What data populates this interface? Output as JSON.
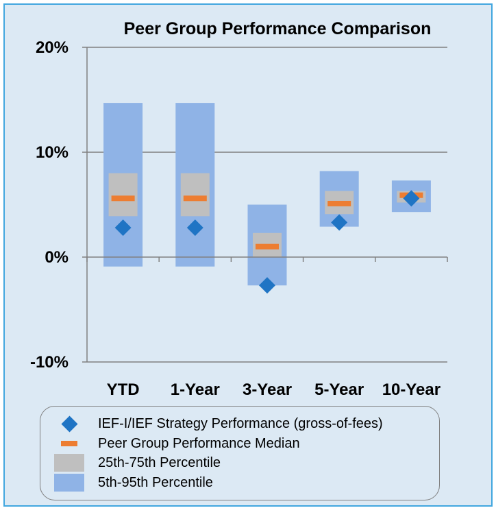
{
  "chart_data": {
    "type": "box",
    "title": "Peer Group Performance Comparison",
    "categories": [
      "YTD",
      "1-Year",
      "3-Year",
      "5-Year",
      "10-Year"
    ],
    "y_ticks": [
      20,
      10,
      0,
      -10
    ],
    "y_tick_labels": [
      "20%",
      "10%",
      "0%",
      "-10%"
    ],
    "ylim": [
      -10,
      20
    ],
    "grid": true,
    "series": [
      {
        "name": "5th-95th Percentile",
        "low": [
          -0.9,
          -0.9,
          -2.7,
          2.9,
          4.3
        ],
        "high": [
          14.7,
          14.7,
          5.0,
          8.2,
          7.3
        ]
      },
      {
        "name": "25th-75th Percentile",
        "low": [
          3.9,
          3.9,
          0.0,
          4.1,
          5.2
        ],
        "high": [
          8.0,
          8.0,
          2.3,
          6.3,
          6.3
        ]
      },
      {
        "name": "Peer Group Performance Median",
        "values": [
          5.6,
          5.6,
          1.0,
          5.1,
          5.9
        ]
      },
      {
        "name": "IEF-I/IEF Strategy Performance (gross-of-fees)",
        "values": [
          2.8,
          2.8,
          -2.7,
          3.3,
          5.6
        ]
      }
    ],
    "colors": {
      "p5_95": "#8fb3e6",
      "p25_75": "#bfbfbf",
      "median": "#ed7d31",
      "strategy": "#1f74c4",
      "axis": "#808080"
    },
    "legend_position": "bottom"
  },
  "legend": [
    {
      "label": "IEF-I/IEF Strategy Performance (gross-of-fees)",
      "symbol": "diamond"
    },
    {
      "label": "Peer Group Performance Median",
      "symbol": "median"
    },
    {
      "label": "25th-75th Percentile",
      "symbol": "box-grey"
    },
    {
      "label": "5th-95th Percentile",
      "symbol": "box-blue"
    }
  ]
}
